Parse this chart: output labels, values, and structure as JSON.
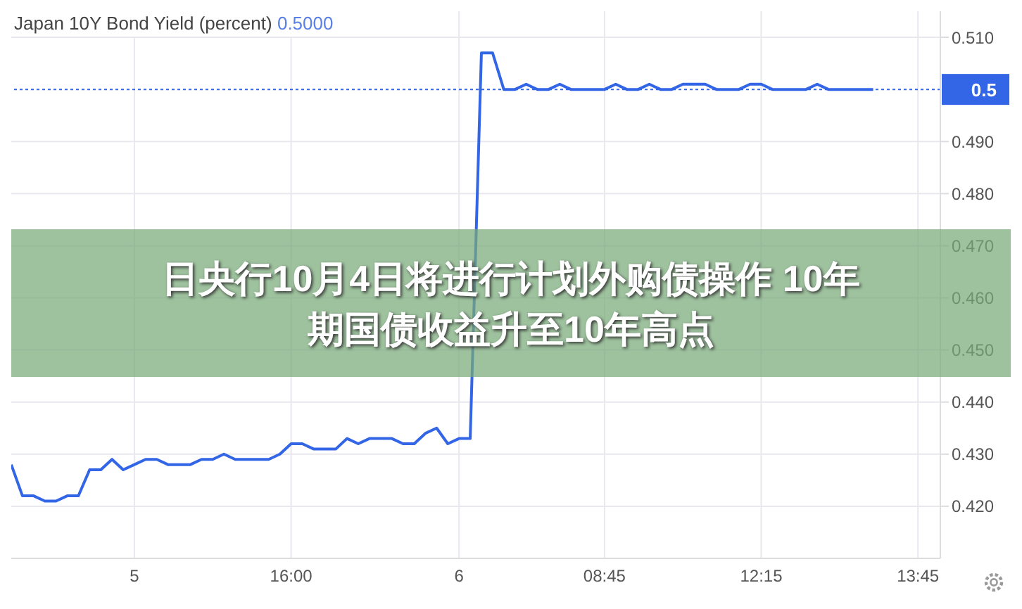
{
  "chart_data": {
    "type": "line",
    "title": "Japan 10Y Bond Yield (percent)",
    "annotations": [
      "0.5000",
      "日央行10月4日将进行计划外购债操作 10年期国债收益升至10年高点"
    ],
    "categories": [
      null,
      null,
      null,
      null,
      null,
      null,
      null,
      null,
      null,
      null,
      null,
      "5",
      null,
      null,
      null,
      null,
      null,
      null,
      null,
      null,
      null,
      null,
      null,
      null,
      null,
      "16:00",
      null,
      null,
      null,
      null,
      null,
      null,
      null,
      null,
      null,
      null,
      null,
      null,
      null,
      null,
      "6",
      null,
      null,
      null,
      null,
      null,
      null,
      null,
      null,
      null,
      null,
      null,
      null,
      "08:45",
      null,
      null,
      null,
      null,
      null,
      null,
      null,
      null,
      null,
      null,
      null,
      null,
      null,
      "12:15",
      null,
      null,
      null,
      null,
      null,
      null,
      null,
      null,
      null,
      null,
      null,
      null,
      null,
      "13:45",
      null,
      null
    ],
    "series": [
      {
        "color": "#3366e6",
        "values": [
          0.428,
          0.422,
          0.422,
          0.421,
          0.421,
          0.422,
          0.422,
          0.427,
          0.427,
          0.429,
          0.427,
          0.428,
          0.429,
          0.429,
          0.428,
          0.428,
          0.428,
          0.429,
          0.429,
          0.43,
          0.429,
          0.429,
          0.429,
          0.429,
          0.43,
          0.432,
          0.432,
          0.431,
          0.431,
          0.431,
          0.433,
          0.432,
          0.433,
          0.433,
          0.433,
          0.432,
          0.432,
          0.434,
          0.435,
          0.432,
          0.433,
          0.433,
          0.507,
          0.507,
          0.5,
          0.5,
          0.501,
          0.5,
          0.5,
          0.501,
          0.5,
          0.5,
          0.5,
          0.5,
          0.501,
          0.5,
          0.5,
          0.501,
          0.5,
          0.5,
          0.501,
          0.501,
          0.501,
          0.5,
          0.5,
          0.5,
          0.501,
          0.501,
          0.5,
          0.5,
          0.5,
          0.5,
          0.501,
          0.5,
          0.5,
          0.5,
          0.5,
          0.5,
          null,
          null,
          null,
          null,
          null,
          null
        ]
      }
    ],
    "ylim": [
      0.41,
      0.515
    ],
    "yticks": [
      {
        "value": 0.42,
        "label": "0.420"
      },
      {
        "value": 0.43,
        "label": "0.430"
      },
      {
        "value": 0.44,
        "label": "0.440"
      },
      {
        "value": 0.45,
        "label": "0.450"
      },
      {
        "value": 0.46,
        "label": "0.460"
      },
      {
        "value": 0.47,
        "label": "0.470"
      },
      {
        "value": 0.48,
        "label": "0.480"
      },
      {
        "value": 0.49,
        "label": "0.490"
      },
      {
        "value": 0.51,
        "label": "0.510"
      }
    ],
    "ref_lines": [
      {
        "axis": "y",
        "value": 0.5,
        "label": "0.5",
        "color": "#3366e6",
        "line_style": "dotted"
      }
    ],
    "grid": true,
    "marker": "none",
    "line_style": "solid"
  }
}
